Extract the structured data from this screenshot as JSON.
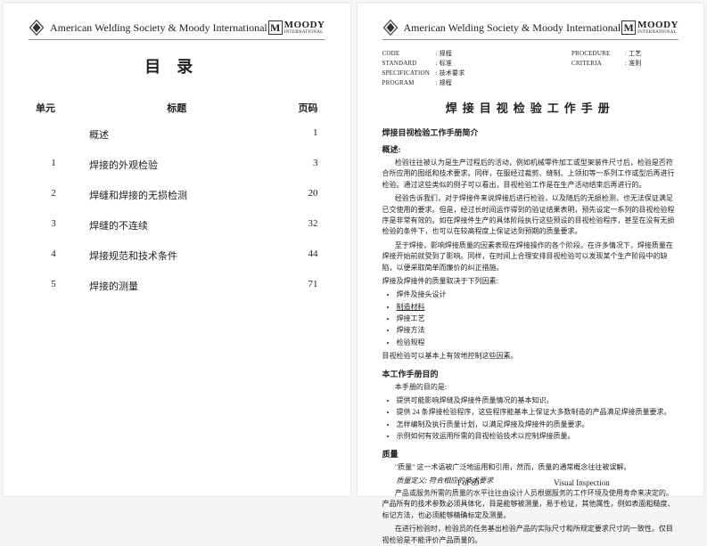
{
  "header": {
    "org": "American Welding Society & Moody International",
    "moody_main": "MOODY",
    "moody_sub": "INTERNATIONAL"
  },
  "left": {
    "toc_title": "目录",
    "headers": {
      "unit": "单元",
      "title": "标题",
      "page": "页码"
    },
    "rows": [
      {
        "unit": "",
        "title": "概述",
        "page": "1"
      },
      {
        "unit": "1",
        "title": "焊接的外观检验",
        "page": "3"
      },
      {
        "unit": "2",
        "title": "焊缝和焊接的无损检测",
        "page": "20"
      },
      {
        "unit": "3",
        "title": "焊缝的不连续",
        "page": "32"
      },
      {
        "unit": "4",
        "title": "焊接规范和技术条件",
        "page": "44"
      },
      {
        "unit": "5",
        "title": "焊接的测量",
        "page": "71"
      }
    ]
  },
  "right": {
    "meta": {
      "left": [
        {
          "label": "CODE",
          "val": ": 规程"
        },
        {
          "label": "STANDARD",
          "val": ": 标准"
        },
        {
          "label": "SPECIFICATION",
          "val": ": 技术要求"
        },
        {
          "label": "PROGRAM",
          "val": ": 规程"
        }
      ],
      "right": [
        {
          "label": "PROCEDURE",
          "val": ": 工艺"
        },
        {
          "label": "CRITERIA",
          "val": ": 准则"
        }
      ]
    },
    "doc_title": "焊接目视检验工作手册",
    "intro_title": "焊接目视检验工作手册简介",
    "s1_title": "概述:",
    "p1": "检验往往被认为是生产过程后的活动，例如机械零件加工或型架装件尺寸后，检验是否符合所应用的图纸和技术要求。同样，在服经过裁剪、缝制、上领扣等一系列工作或型后再进行检验。通过这些类似的例子可以看出，目视检验工作是在生产活动结束后再进行的。",
    "p2": "经验告诉我们，对于焊接件来说焊接后进行检验，以及随后的无损检测，也无法保证满足已交使用的要求。但是，经过长时间运作得到的验证结果表明，预先设定一系列的目视检验程序是非常有效的。如在焊接件生产的具体阶段执行这些预设的目视检验程序，甚至在没有无损检验的条件下，也可以在较高程度上保证达到预期的质量要求。",
    "p3": "至于焊接，影响焊接质量的因素表现在焊接操作的各个阶段。在许多情况下，焊接质量在焊接开始前就受到了影响。同样，在时间上合理安排目视检验可以发现某个生产阶段中的缺陷，以便采取简单而廉价的纠正措施。",
    "p4": "焊接及焊接件的质量取决于下列因素:",
    "bullets1": [
      "焊件及接头设计",
      "制造材料",
      "焊接工艺",
      "焊接方法",
      "检验规程"
    ],
    "p5": "目视检验可以基本上有效地控制这些因素。",
    "s2_title": "本工作手册目的",
    "p6": "本手册的目的是:",
    "bullets2": [
      "提供可能影响焊缝及焊接件质量情况的基本知识。",
      "提供 24 条焊接检验程序，这些程序能基本上保证大多数制造的产品满足焊接质量要求。",
      "怎样编制及执行质量计划，以满足焊接及焊接件的质量要求。",
      "示例如何有效运用所需的目视检验技术以控制焊接质量。"
    ],
    "s3_title": "质量",
    "p7": "\"质量\" 这一术语被广泛地运用和引用，然而，质量的通常概念往往被误解。",
    "quality_def": "质量定义: 符合相应的技术要求",
    "p8": "产品或服务所需的质量的水平往往由设计人员根据服务的工作环境及使用寿命来决定的。产品所有的技术参数必须具体化，目是能够被测量，易于检证，其他属性，例如表面粗糙度、标记方法，也必须能够精确标定及测量。",
    "p9": "在进行检验时，检验员的任务基出检验产品的实际尺寸和所规定要求尺寸的一致性。仅目视检验是不能评价产品质量的。",
    "footer": {
      "mid": "1 of 89",
      "right": "Visual Inspection"
    }
  }
}
